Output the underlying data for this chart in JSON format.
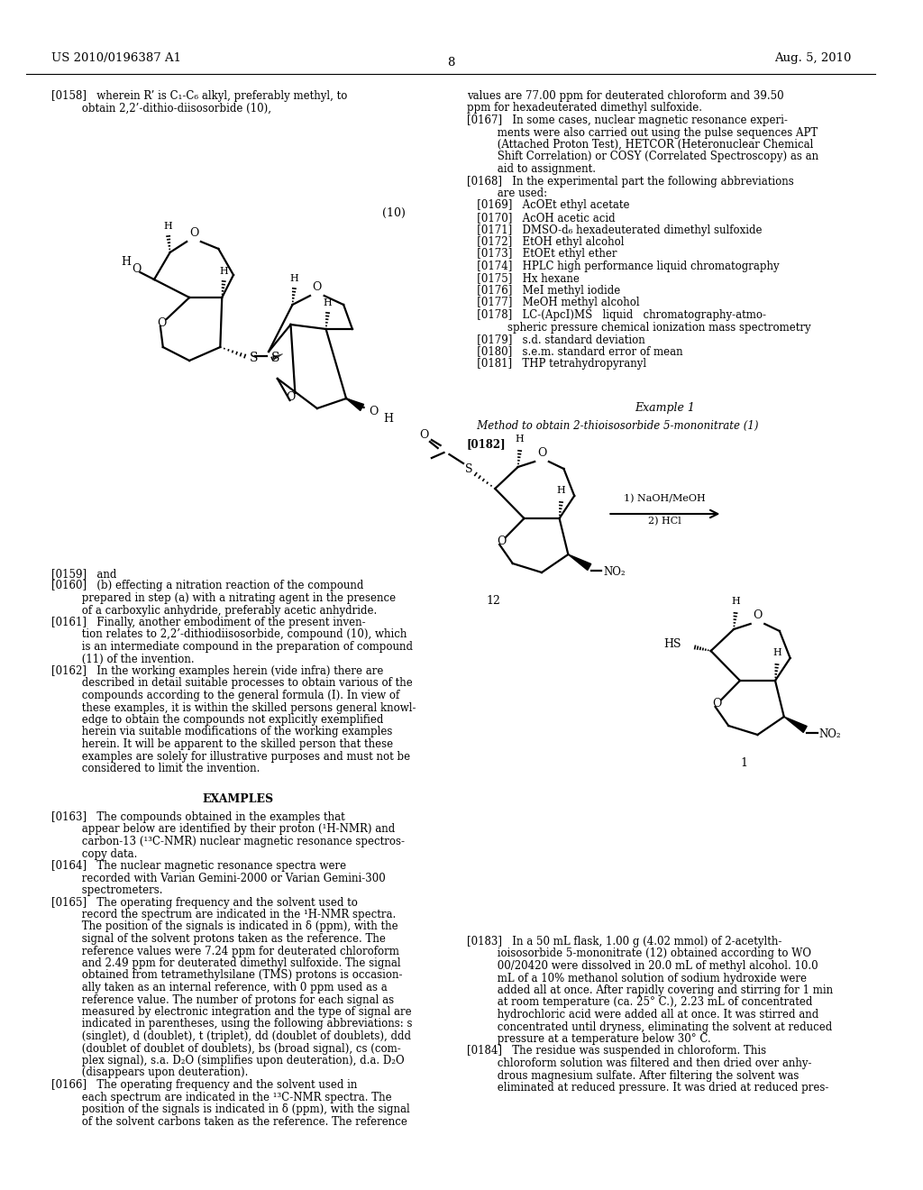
{
  "background_color": "#ffffff",
  "page_number": "8",
  "header_left": "US 2010/0196387 A1",
  "header_right": "Aug. 5, 2010"
}
